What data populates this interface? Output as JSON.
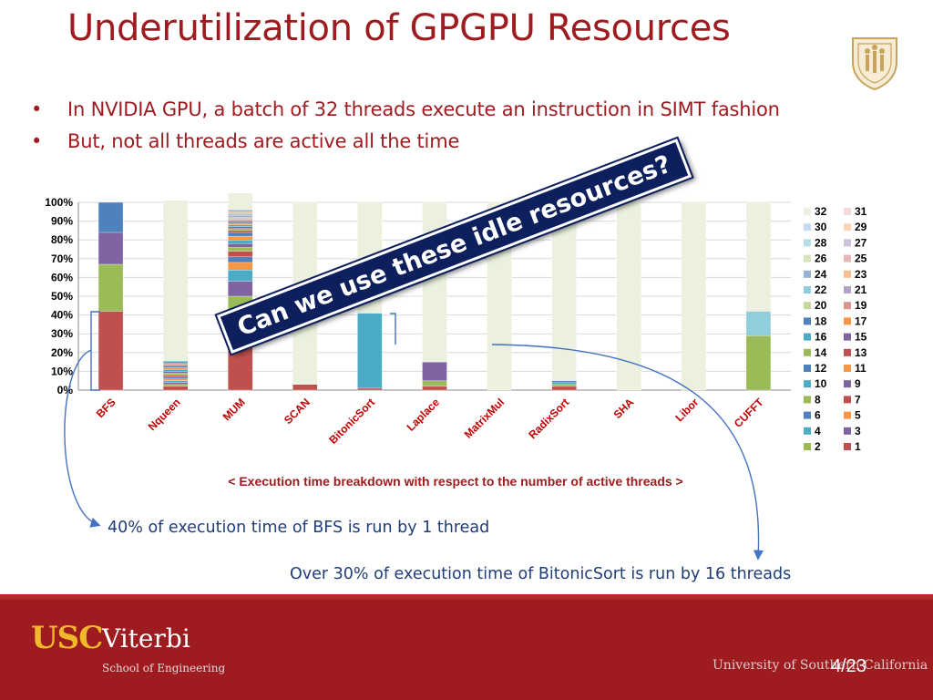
{
  "slide": {
    "title": "Underutilization of GPGPU Resources",
    "bullets": [
      "In NVIDIA GPU, a batch of 32 threads execute an instruction in SIMT fashion",
      "But, not all threads are active all the time"
    ],
    "bullet_glyph": "•",
    "callout": "Can we use these idle resources?",
    "caption": "< Execution time breakdown with respect to the number of active threads >",
    "note_bfs": "40% of execution time of BFS is run by 1 thread",
    "note_bitonic": "Over 30% of execution time of BitonicSort is run by 16 threads",
    "page_number": "4/23"
  },
  "footer": {
    "logo_usc": "USC",
    "logo_viterbi": "Viterbi",
    "school": "School of Engineering",
    "university": "University of Southern California"
  },
  "colors": {
    "title": "#9e1b20",
    "note": "#1f3d7a",
    "callout_bg": "#0d1f5c",
    "footer": "#9e1b20"
  },
  "chart_data": {
    "type": "bar",
    "stacked": true,
    "categories": [
      "BFS",
      "Nqueen",
      "MUM",
      "SCAN",
      "BitonicSort",
      "Laplace",
      "MatrixMul",
      "RadixSort",
      "SHA",
      "Libor",
      "CUFFT"
    ],
    "ylim": [
      0,
      100
    ],
    "yticks": [
      "0%",
      "10%",
      "20%",
      "30%",
      "40%",
      "50%",
      "60%",
      "70%",
      "80%",
      "90%",
      "100%"
    ],
    "legend_labels": [
      "32",
      "31",
      "30",
      "29",
      "28",
      "27",
      "26",
      "25",
      "24",
      "23",
      "22",
      "21",
      "20",
      "19",
      "18",
      "17",
      "16",
      "15",
      "14",
      "13",
      "12",
      "11",
      "10",
      "9",
      "8",
      "7",
      "6",
      "5",
      "4",
      "3",
      "2",
      "1"
    ],
    "legend_position": "right",
    "series_colors": {
      "1": "#c0504d",
      "2": "#9bbb59",
      "3": "#8064a2",
      "4": "#4bacc6",
      "5": "#f79646",
      "6": "#4f81bd",
      "7": "#c0504d",
      "8": "#9bbb59",
      "9": "#8064a2",
      "10": "#4bacc6",
      "11": "#f79646",
      "12": "#4f81bd",
      "13": "#c0504d",
      "14": "#9bbb59",
      "15": "#8064a2",
      "16": "#4bacc6",
      "17": "#f79646",
      "18": "#4f81bd",
      "19": "#d99594",
      "20": "#c3d69b",
      "21": "#b2a2c7",
      "22": "#92cddc",
      "23": "#fac090",
      "24": "#95b3d7",
      "25": "#e6b9b8",
      "26": "#d7e4bd",
      "27": "#ccc1da",
      "28": "#b7dee8",
      "29": "#fcd5b5",
      "30": "#c6d9f1",
      "31": "#f2dcdb",
      "32": "#ebf1de"
    },
    "stacks": [
      [
        {
          "t": "1",
          "v": 42
        },
        {
          "t": "2",
          "v": 25
        },
        {
          "t": "3",
          "v": 17
        },
        {
          "t": "6",
          "v": 16
        }
      ],
      [
        {
          "t": "1",
          "v": 2
        },
        {
          "t": "2",
          "v": 1
        },
        {
          "t": "3",
          "v": 1
        },
        {
          "t": "4",
          "v": 1
        },
        {
          "t": "5",
          "v": 1
        },
        {
          "t": "6",
          "v": 1
        },
        {
          "t": "7",
          "v": 1
        },
        {
          "t": "8",
          "v": 1
        },
        {
          "t": "9",
          "v": 1
        },
        {
          "t": "10",
          "v": 1
        },
        {
          "t": "11",
          "v": 1
        },
        {
          "t": "12",
          "v": 1
        },
        {
          "t": "13",
          "v": 0.5
        },
        {
          "t": "14",
          "v": 0.5
        },
        {
          "t": "15",
          "v": 0.5
        },
        {
          "t": "16",
          "v": 1
        },
        {
          "t": "32",
          "v": 85.5
        }
      ],
      [
        {
          "t": "1",
          "v": 37
        },
        {
          "t": "2",
          "v": 13
        },
        {
          "t": "3",
          "v": 8
        },
        {
          "t": "4",
          "v": 6
        },
        {
          "t": "5",
          "v": 4
        },
        {
          "t": "6",
          "v": 3
        },
        {
          "t": "7",
          "v": 3
        },
        {
          "t": "8",
          "v": 2
        },
        {
          "t": "9",
          "v": 2
        },
        {
          "t": "10",
          "v": 2
        },
        {
          "t": "11",
          "v": 2
        },
        {
          "t": "12",
          "v": 2
        },
        {
          "t": "13",
          "v": 1
        },
        {
          "t": "14",
          "v": 1
        },
        {
          "t": "15",
          "v": 1
        },
        {
          "t": "16",
          "v": 1
        },
        {
          "t": "17",
          "v": 1
        },
        {
          "t": "18",
          "v": 1
        },
        {
          "t": "19",
          "v": 1
        },
        {
          "t": "20",
          "v": 1
        },
        {
          "t": "21",
          "v": 1
        },
        {
          "t": "22",
          "v": 1
        },
        {
          "t": "23",
          "v": 1
        },
        {
          "t": "24",
          "v": 1
        },
        {
          "t": "32",
          "v": 11
        }
      ],
      [
        {
          "t": "1",
          "v": 3
        },
        {
          "t": "32",
          "v": 97
        }
      ],
      [
        {
          "t": "1",
          "v": 1
        },
        {
          "t": "16",
          "v": 40
        },
        {
          "t": "32",
          "v": 59
        }
      ],
      [
        {
          "t": "1",
          "v": 2
        },
        {
          "t": "2",
          "v": 3
        },
        {
          "t": "3",
          "v": 10
        },
        {
          "t": "32",
          "v": 85
        }
      ],
      [
        {
          "t": "32",
          "v": 100
        }
      ],
      [
        {
          "t": "1",
          "v": 2
        },
        {
          "t": "2",
          "v": 1
        },
        {
          "t": "4",
          "v": 1
        },
        {
          "t": "6",
          "v": 1
        },
        {
          "t": "32",
          "v": 95
        }
      ],
      [
        {
          "t": "32",
          "v": 100
        }
      ],
      [
        {
          "t": "32",
          "v": 100
        }
      ],
      [
        {
          "t": "2",
          "v": 29
        },
        {
          "t": "22",
          "v": 13
        },
        {
          "t": "32",
          "v": 58
        }
      ]
    ]
  }
}
